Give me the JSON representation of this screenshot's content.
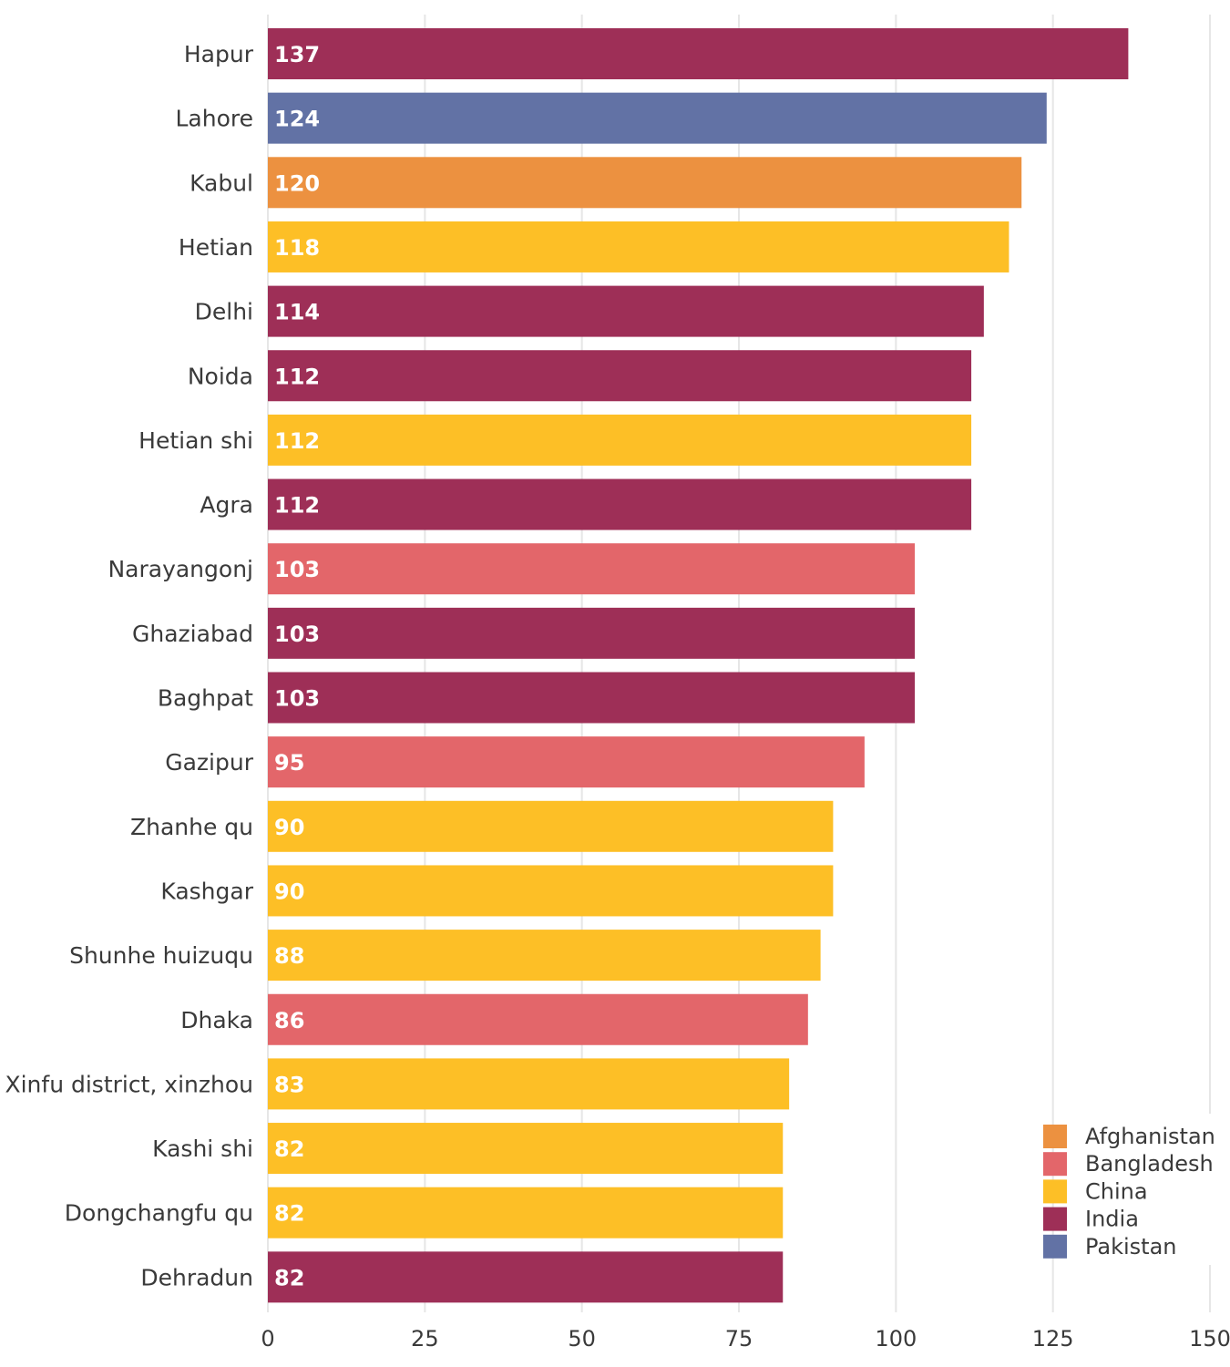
{
  "chart_data": {
    "type": "bar",
    "orientation": "horizontal",
    "title": "",
    "xlabel": "",
    "ylabel": "",
    "xlim": [
      0,
      150
    ],
    "ticks": [
      0,
      25,
      50,
      75,
      100,
      125,
      150
    ],
    "tick_labels": [
      "0",
      "25",
      "50",
      "75",
      "100",
      "125",
      "150"
    ],
    "grid": true,
    "legend_position": "bottom-right",
    "categories": [
      "Hapur",
      "Lahore",
      "Kabul",
      "Hetian",
      "Delhi",
      "Noida",
      "Hetian shi",
      "Agra",
      "Narayangonj",
      "Ghaziabad",
      "Baghpat",
      "Gazipur",
      "Zhanhe qu",
      "Kashgar",
      "Shunhe huizuqu",
      "Dhaka",
      "Xinfu district, xinzhou",
      "Kashi shi",
      "Dongchangfu qu",
      "Dehradun"
    ],
    "values": [
      137,
      124,
      120,
      118,
      114,
      112,
      112,
      112,
      103,
      103,
      103,
      95,
      90,
      90,
      88,
      86,
      83,
      82,
      82,
      82
    ],
    "value_labels": [
      "137",
      "124",
      "120",
      "118",
      "114",
      "112",
      "112",
      "112",
      "103",
      "103",
      "103",
      "95",
      "90",
      "90",
      "88",
      "86",
      "83",
      "82",
      "82",
      "82"
    ],
    "groups": [
      "India",
      "Pakistan",
      "Afghanistan",
      "China",
      "India",
      "India",
      "China",
      "India",
      "Bangladesh",
      "India",
      "India",
      "Bangladesh",
      "China",
      "China",
      "China",
      "Bangladesh",
      "China",
      "China",
      "China",
      "India"
    ],
    "legend": [
      {
        "name": "Afghanistan",
        "color": "#ec9140"
      },
      {
        "name": "Bangladesh",
        "color": "#e3666a"
      },
      {
        "name": "China",
        "color": "#fdbf26"
      },
      {
        "name": "India",
        "color": "#9e2f57"
      },
      {
        "name": "Pakistan",
        "color": "#6272a5"
      }
    ]
  }
}
